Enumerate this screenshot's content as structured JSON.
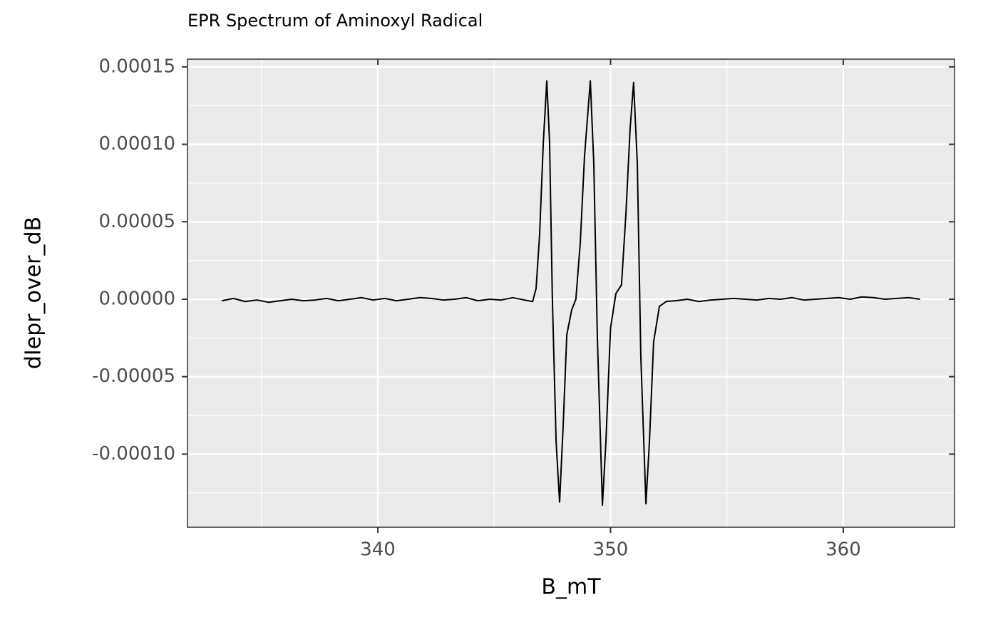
{
  "chart_data": {
    "type": "line",
    "title": "EPR Spectrum of Aminoxyl Radical",
    "x_label": "B_mT",
    "y_label": "dIepr_over_dB",
    "color": "#000000",
    "grid": true,
    "x": [
      333.3,
      333.8,
      334.3,
      334.8,
      335.3,
      335.8,
      336.3,
      336.8,
      337.3,
      337.8,
      338.3,
      338.8,
      339.3,
      339.8,
      340.3,
      340.8,
      341.3,
      341.8,
      342.3,
      342.8,
      343.3,
      343.8,
      344.3,
      344.8,
      345.3,
      345.8,
      346.3,
      346.65,
      346.8,
      346.95,
      347.11,
      347.26,
      347.38,
      347.5,
      347.66,
      347.81,
      347.96,
      348.12,
      348.33,
      348.51,
      348.7,
      348.88,
      349.13,
      349.28,
      349.43,
      349.65,
      349.8,
      350.0,
      350.23,
      350.47,
      350.66,
      350.84,
      350.99,
      351.15,
      351.3,
      351.52,
      351.67,
      351.85,
      352.1,
      352.4,
      352.8,
      353.3,
      353.8,
      354.3,
      354.8,
      355.3,
      355.8,
      356.3,
      356.8,
      357.3,
      357.8,
      358.3,
      358.8,
      359.3,
      359.8,
      360.3,
      360.8,
      361.3,
      361.8,
      362.3,
      362.8,
      363.3
    ],
    "values": [
      -1e-06,
      5e-07,
      -1.5e-06,
      -5e-07,
      -2e-06,
      -1e-06,
      0,
      -1e-06,
      -5e-07,
      5e-07,
      -1e-06,
      0,
      1e-06,
      -5e-07,
      5e-07,
      -1e-06,
      0,
      1e-06,
      5e-07,
      -5e-07,
      0,
      1e-06,
      -1e-06,
      0,
      -5e-07,
      1e-06,
      -5e-07,
      -1.5e-06,
      6.9e-06,
      4.14e-05,
      0.000101,
      0.000141,
      0.000101,
      0,
      -9.2e-05,
      -0.000131,
      -8.28e-05,
      -2.3e-05,
      -6.9e-06,
      0,
      3.68e-05,
      9.2e-05,
      0.000141,
      8.74e-05,
      -2.3e-05,
      -0.000133,
      -9.2e-05,
      -1.84e-05,
      3.7e-06,
      9.2e-06,
      5.52e-05,
      0.00011,
      0.00014,
      8.74e-05,
      -3.68e-05,
      -0.000132,
      -9.2e-05,
      -2.76e-05,
      -4.6e-06,
      -1.4e-06,
      -1e-06,
      0,
      -1.5e-06,
      -5e-07,
      0,
      5e-07,
      0,
      -5e-07,
      5e-07,
      0,
      1e-06,
      -5e-07,
      0,
      5e-07,
      1e-06,
      0,
      1.5e-06,
      1e-06,
      0,
      5e-07,
      1e-06,
      0
    ],
    "xlim": [
      331.82,
      364.78
    ],
    "xticks": [
      340,
      350,
      360
    ],
    "xminor": [
      335,
      345,
      355
    ],
    "ylim": [
      -0.0001472,
      0.000155
    ],
    "yticks": [
      {
        "value": -0.0001,
        "label": "-0.00010"
      },
      {
        "value": -5e-05,
        "label": "-0.00005"
      },
      {
        "value": 0,
        "label": "0.00000"
      },
      {
        "value": 5e-05,
        "label": "0.00005"
      },
      {
        "value": 0.0001,
        "label": "0.00010"
      },
      {
        "value": 0.00015,
        "label": "0.00015"
      }
    ],
    "yminor": [
      -0.000125,
      -7.5e-05,
      -2.5e-05,
      2.5e-05,
      7.5e-05,
      0.000125
    ]
  }
}
